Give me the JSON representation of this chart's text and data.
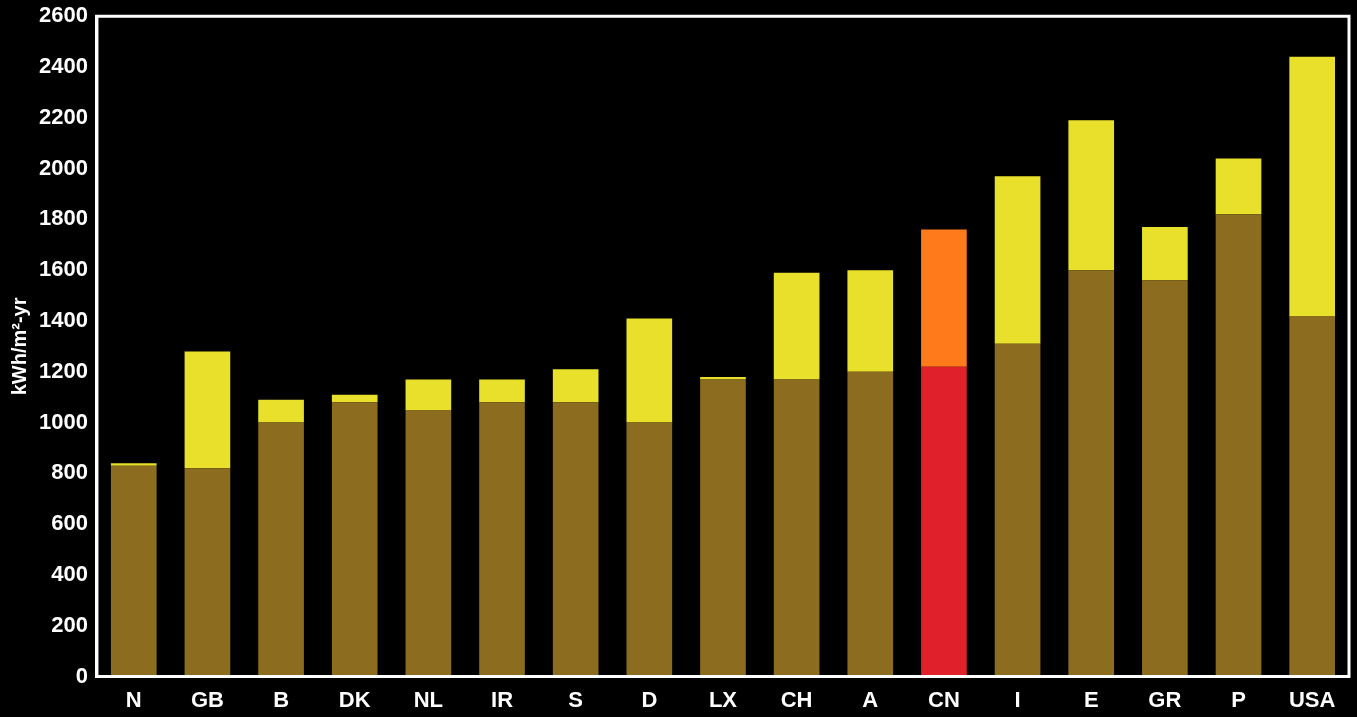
{
  "chart_data": {
    "type": "bar",
    "ylabel": "kWh/m²-yr",
    "stacked": true,
    "categories": [
      "N",
      "GB",
      "B",
      "DK",
      "NL",
      "IR",
      "S",
      "D",
      "LX",
      "CH",
      "A",
      "CN",
      "I",
      "E",
      "GR",
      "P",
      "USA"
    ],
    "series": [
      {
        "colors": [
          "#8c6d1f",
          "#8c6d1f",
          "#8c6d1f",
          "#8c6d1f",
          "#8c6d1f",
          "#8c6d1f",
          "#8c6d1f",
          "#8c6d1f",
          "#8c6d1f",
          "#8c6d1f",
          "#8c6d1f",
          "#e0202a",
          "#8c6d1f",
          "#8c6d1f",
          "#8c6d1f",
          "#8c6d1f",
          "#8c6d1f"
        ],
        "values": [
          830,
          820,
          1000,
          1080,
          1050,
          1080,
          1080,
          1000,
          1170,
          1170,
          1200,
          1220,
          1310,
          1600,
          1560,
          1820,
          1420
        ]
      },
      {
        "colors": [
          "#e8e02a",
          "#e8e02a",
          "#e8e02a",
          "#e8e02a",
          "#e8e02a",
          "#e8e02a",
          "#e8e02a",
          "#e8e02a",
          "#e8e02a",
          "#e8e02a",
          "#e8e02a",
          "#ff7a1a",
          "#e8e02a",
          "#e8e02a",
          "#e8e02a",
          "#e8e02a",
          "#e8e02a"
        ],
        "values": [
          10,
          460,
          90,
          30,
          120,
          90,
          130,
          410,
          10,
          420,
          400,
          540,
          660,
          590,
          210,
          220,
          1020
        ]
      }
    ],
    "ylim": [
      0,
      2600
    ],
    "yticks": [
      0,
      200,
      400,
      600,
      800,
      1000,
      1200,
      1400,
      1600,
      1800,
      2000,
      2200,
      2400,
      2600
    ],
    "grid": false,
    "legend": false
  }
}
